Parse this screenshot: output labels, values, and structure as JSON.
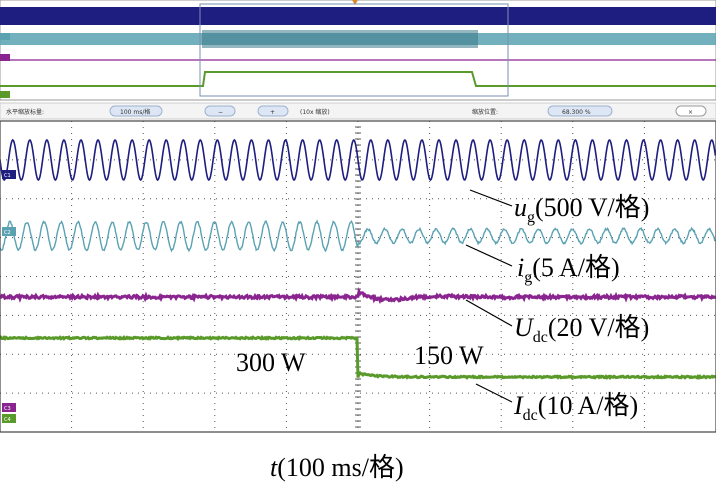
{
  "colors": {
    "ch1": "#1e1d80",
    "ch2": "#5aa2b2",
    "ch3": "#8a2590",
    "ch4": "#5a9a2a",
    "grid": "#555555",
    "trigger": "#d98a2a"
  },
  "toolbar": {
    "zoom_label": "水平缩放标量:",
    "timebase_value": "100 ms/格",
    "minus_label": "−",
    "plus_label": "+",
    "zoom_factor": "(10x 缩放)",
    "position_label": "缩放位置:",
    "position_value": "68.300 %",
    "close_label": "×"
  },
  "channel_tags": [
    "C1",
    "C2",
    "C3",
    "C4"
  ],
  "chart_data": {
    "type": "line",
    "title": "",
    "xlabel_italic": "t",
    "xlabel_rest": "(100 ms/格)",
    "event_index": 10,
    "time_divisions": 20,
    "series": [
      {
        "name": "u_g",
        "label_main": "u",
        "label_sub": "g",
        "label_scale": "(500 V/格)",
        "cycles_total": 42
      },
      {
        "name": "i_g",
        "label_main": "i",
        "label_sub": "g",
        "label_scale": "(5 A/格)",
        "amplitude_before": 1.0,
        "amplitude_after": 0.5
      },
      {
        "name": "U_dc",
        "label_main": "U",
        "label_sub": "dc",
        "label_scale": "(20 V/格)"
      },
      {
        "name": "I_dc",
        "label_main": "I",
        "label_sub": "dc",
        "label_scale": "(10 A/格)",
        "level_before": 1.0,
        "level_after": 0.5
      }
    ],
    "annotations": [
      "300 W",
      "150 W"
    ]
  }
}
